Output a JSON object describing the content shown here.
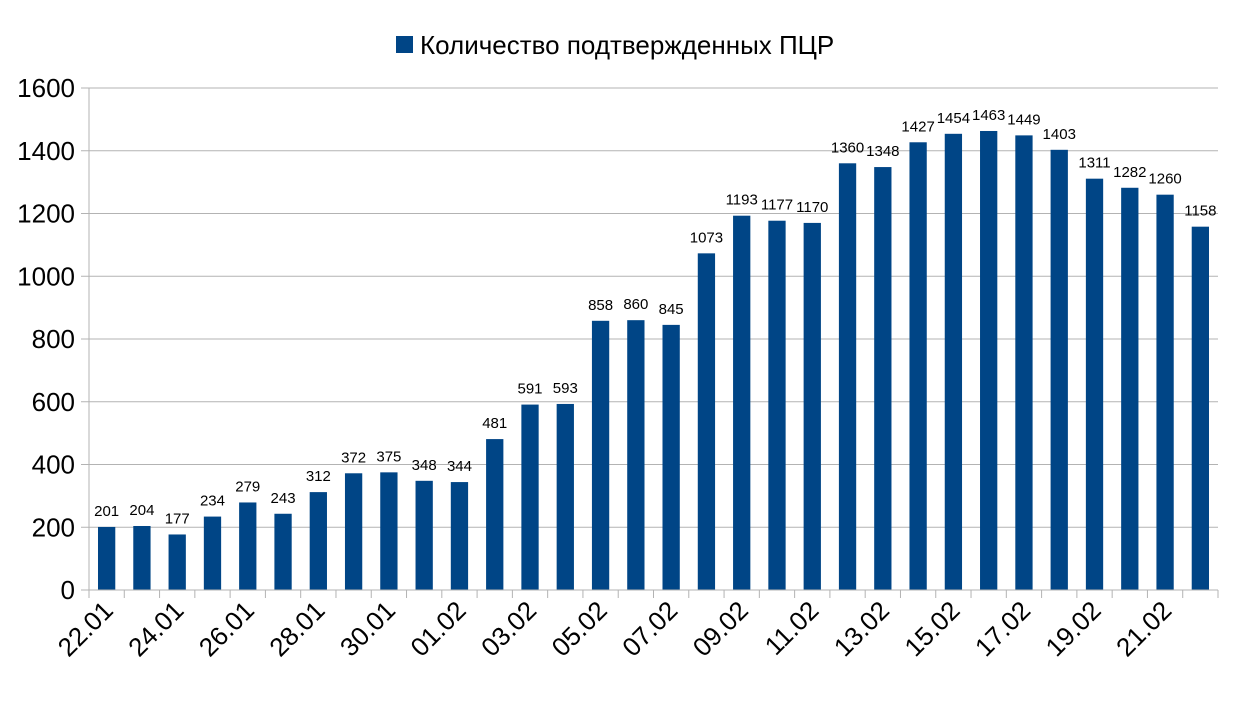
{
  "chart_data": {
    "type": "bar",
    "title": "",
    "xlabel": "",
    "ylabel": "",
    "ylim": [
      0,
      1600
    ],
    "yticks": [
      0,
      200,
      400,
      600,
      800,
      1000,
      1200,
      1400,
      1600
    ],
    "grid": true,
    "legend_position": "top-center",
    "categories": [
      "22.01",
      "23.01",
      "24.01",
      "25.01",
      "26.01",
      "27.01",
      "28.01",
      "29.01",
      "30.01",
      "31.01",
      "01.02",
      "02.02",
      "03.02",
      "04.02",
      "05.02",
      "06.02",
      "07.02",
      "08.02",
      "09.02",
      "10.02",
      "11.02",
      "12.02",
      "13.02",
      "14.02",
      "15.02",
      "16.02",
      "17.02",
      "18.02",
      "19.02",
      "20.02",
      "21.02",
      "22.02"
    ],
    "xtick_labels": [
      "22.01",
      "24.01",
      "26.01",
      "28.01",
      "30.01",
      "01.02",
      "03.02",
      "05.02",
      "07.02",
      "09.02",
      "11.02",
      "13.02",
      "15.02",
      "17.02",
      "19.02",
      "21.02"
    ],
    "series": [
      {
        "name": "Количество подтвержденных ПЦР",
        "color": "#004586",
        "values": [
          201,
          204,
          177,
          234,
          279,
          243,
          312,
          372,
          375,
          348,
          344,
          481,
          591,
          593,
          858,
          860,
          845,
          1073,
          1193,
          1177,
          1170,
          1360,
          1348,
          1427,
          1454,
          1463,
          1449,
          1403,
          1311,
          1282,
          1260,
          1158
        ]
      }
    ]
  }
}
